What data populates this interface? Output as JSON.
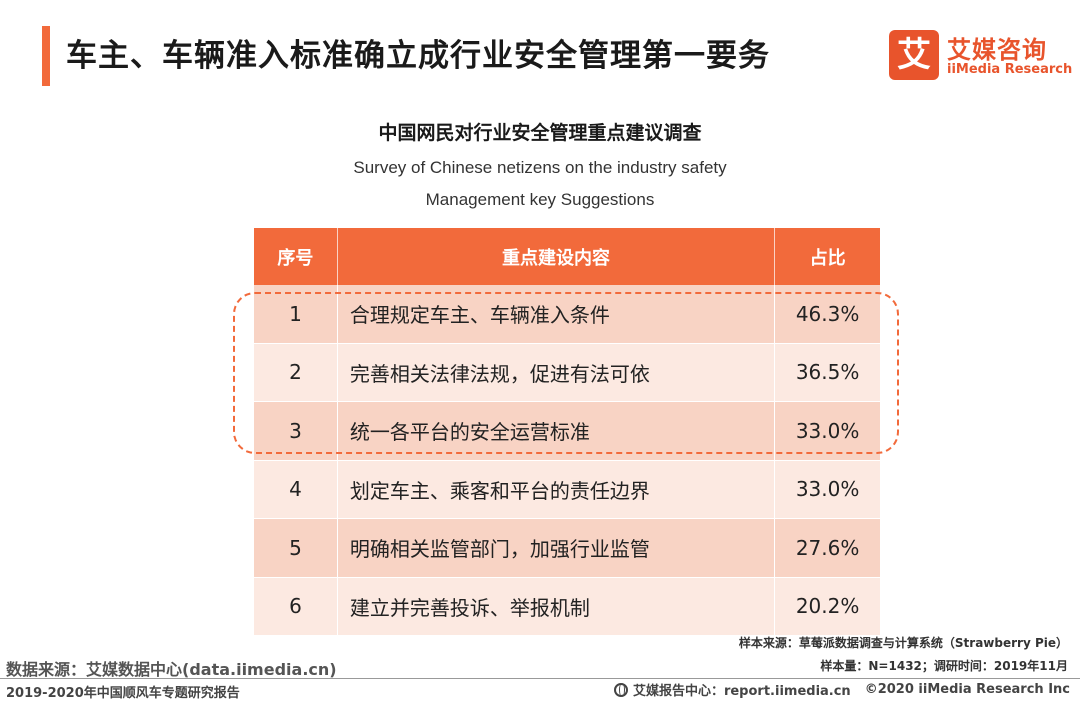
{
  "header": {
    "title": "车主、车辆准入标准确立成行业安全管理第一要务"
  },
  "logo": {
    "mark": "艾",
    "name_cn": "艾媒咨询",
    "name_en": "iiMedia Research"
  },
  "chart_data": {
    "type": "table",
    "title": "中国网民对行业安全管理重点建议调查",
    "subtitle_line1": "Survey of Chinese netizens on the industry safety",
    "subtitle_line2": "Management  key Suggestions",
    "columns": [
      "序号",
      "重点建设内容",
      "占比"
    ],
    "rows": [
      {
        "index": "1",
        "item": "合理规定车主、车辆准入条件",
        "share": "46.3%"
      },
      {
        "index": "2",
        "item": "完善相关法律法规，促进有法可依",
        "share": "36.5%"
      },
      {
        "index": "3",
        "item": "统一各平台的安全运营标准",
        "share": "33.0%"
      },
      {
        "index": "4",
        "item": "划定车主、乘客和平台的责任边界",
        "share": "33.0%"
      },
      {
        "index": "5",
        "item": "明确相关监管部门，加强行业监管",
        "share": "27.6%"
      },
      {
        "index": "6",
        "item": "建立并完善投诉、举报机制",
        "share": "20.2%"
      }
    ],
    "highlighted_rows": [
      1,
      2,
      3
    ],
    "header_color": "#f26a3b",
    "row_colors": [
      "#f8d3c4",
      "#fce9e1"
    ]
  },
  "notes": {
    "sample_source": "样本来源：草莓派数据调查与计算系统（Strawberry Pie）",
    "sample_size": "样本量：N=1432；调研时间：2019年11月"
  },
  "footer": {
    "data_source": "数据来源：艾媒数据中心(data.iimedia.cn)",
    "report_name": "2019-2020年中国顺风车专题研究报告",
    "report_center": "艾媒报告中心：report.iimedia.cn",
    "copyright": "©2020  iiMedia Research  Inc"
  }
}
